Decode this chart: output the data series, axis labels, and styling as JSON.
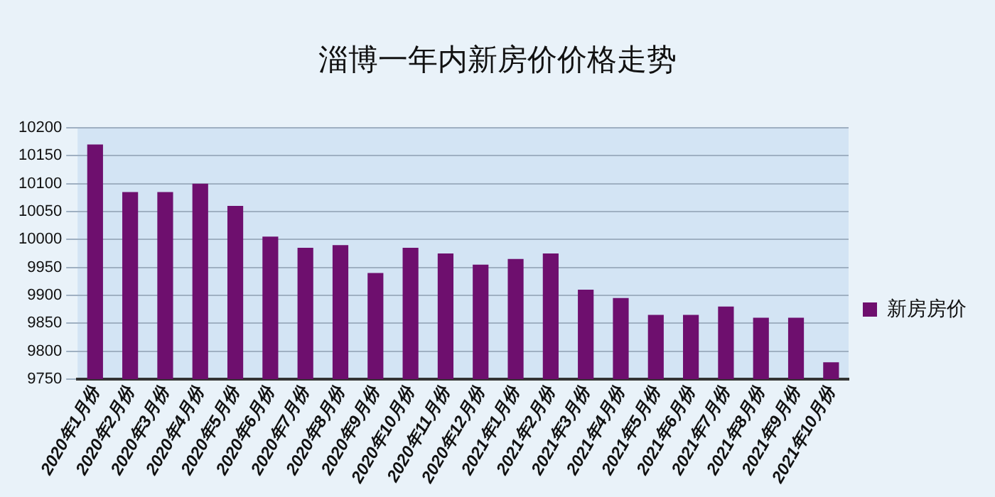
{
  "chart_data": {
    "type": "bar",
    "title": "淄博一年内新房价价格走势",
    "categories": [
      "2020年1月份",
      "2020年2月份",
      "2020年3月份",
      "2020年4月份",
      "2020年5月份",
      "2020年6月份",
      "2020年7月份",
      "2020年8月份",
      "2020年9月份",
      "2020年10月份",
      "2020年11月份",
      "2020年12月份",
      "2021年1月份",
      "2021年2月份",
      "2021年3月份",
      "2021年4月份",
      "2021年5月份",
      "2021年6月份",
      "2021年7月份",
      "2021年8月份",
      "2021年9月份",
      "2021年10月份"
    ],
    "series": [
      {
        "name": "新房房价",
        "color": "#6e0f6e",
        "values": [
          10170,
          10085,
          10085,
          10100,
          10060,
          10005,
          9985,
          9990,
          9940,
          9985,
          9975,
          9955,
          9965,
          9975,
          9910,
          9895,
          9865,
          9865,
          9880,
          9860,
          9860,
          9780
        ]
      }
    ],
    "ylim": [
      9750,
      10200
    ],
    "yticks": [
      9750,
      9800,
      9850,
      9900,
      9950,
      10000,
      10050,
      10100,
      10150,
      10200
    ],
    "grid": "y",
    "legend": "right"
  }
}
